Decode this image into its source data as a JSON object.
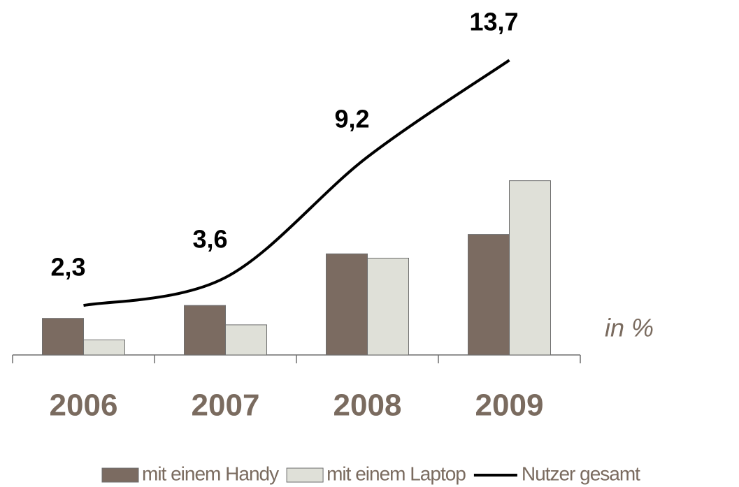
{
  "chart_data": {
    "type": "bar-line",
    "categories": [
      "2006",
      "2007",
      "2008",
      "2009"
    ],
    "unit_label": "in %",
    "ylim": [
      0,
      16.5
    ],
    "series": [
      {
        "name": "mit einem Handy",
        "type": "bar",
        "color": "#7b6b61",
        "values": [
          1.7,
          2.3,
          4.7,
          5.6
        ]
      },
      {
        "name": "mit einem Laptop",
        "type": "bar",
        "color": "#dfe0d8",
        "values": [
          0.7,
          1.4,
          4.5,
          8.1
        ]
      },
      {
        "name": "Nutzer gesamt",
        "type": "line",
        "color": "#000000",
        "values": [
          2.3,
          3.6,
          9.2,
          13.7
        ],
        "value_labels": [
          "2,3",
          "3,6",
          "9,2",
          "13,7"
        ]
      }
    ],
    "legend": "bottom"
  }
}
